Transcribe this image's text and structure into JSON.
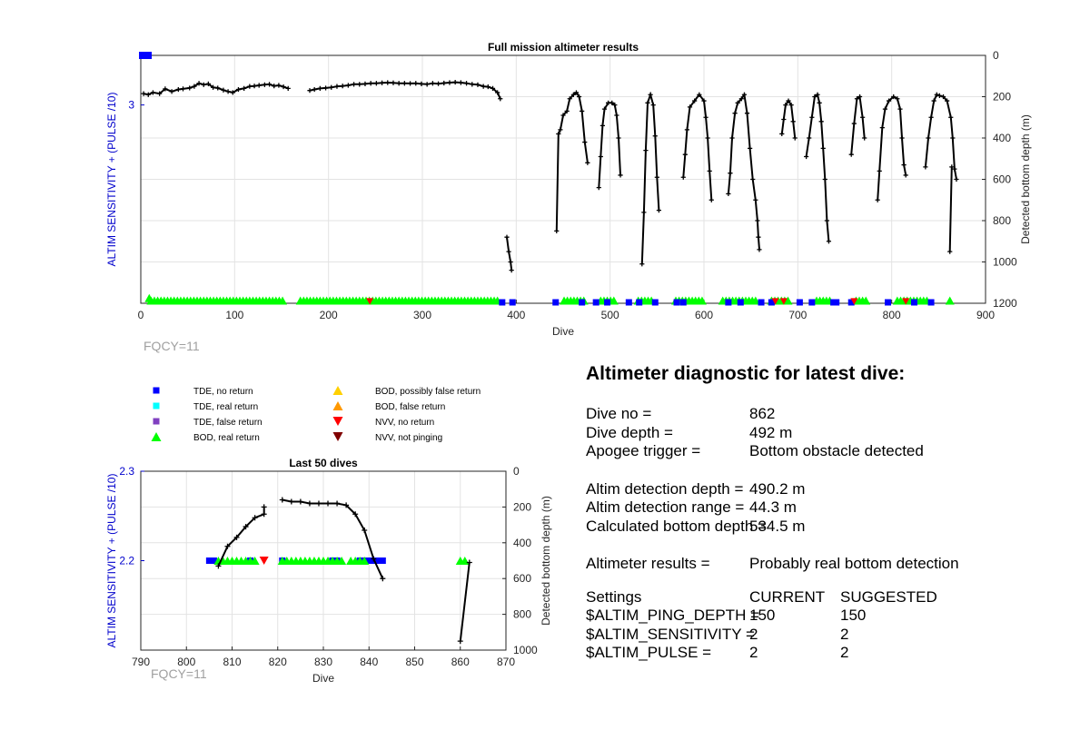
{
  "colors": {
    "tde_no_return": "#0000ff",
    "tde_real_return": "#00ffff",
    "tde_false_return": "#8040c0",
    "bod_real_return": "#00ff00",
    "bod_possibly_false": "#ffd000",
    "bod_false": "#ff9900",
    "nvv_no_return": "#ff0000",
    "nvv_not_pinging": "#800000",
    "depth_line": "#000000",
    "left_axis": "#0000cc",
    "fqcy_text": "#a0a0a0"
  },
  "top_fqcy": "FQCY=11",
  "bottom_fqcy": "FQCY=11",
  "legend": [
    {
      "label": "TDE, no return",
      "marker": "square",
      "color_key": "tde_no_return"
    },
    {
      "label": "TDE, real return",
      "marker": "square",
      "color_key": "tde_real_return"
    },
    {
      "label": "TDE, false return",
      "marker": "square",
      "color_key": "tde_false_return"
    },
    {
      "label": "BOD, real return",
      "marker": "triangle-up",
      "color_key": "bod_real_return"
    },
    {
      "label": "BOD, possibly false return",
      "marker": "triangle-up",
      "color_key": "bod_possibly_false"
    },
    {
      "label": "BOD, false return",
      "marker": "triangle-up",
      "color_key": "bod_false"
    },
    {
      "label": "NVV, no return",
      "marker": "triangle-down",
      "color_key": "nvv_no_return"
    },
    {
      "label": "NVV, not pinging",
      "marker": "triangle-down",
      "color_key": "nvv_not_pinging"
    }
  ],
  "chart_data": [
    {
      "type": "line",
      "title": "Full mission altimeter results",
      "xlabel": "Dive",
      "ylabel": "ALTIM SENSITIVITY + (PULSE /10)",
      "y2label": "Detected bottom depth (m)",
      "xlim": [
        0,
        900
      ],
      "xticks": [
        0,
        100,
        200,
        300,
        400,
        500,
        600,
        700,
        800,
        900
      ],
      "ylim_left": [
        2.2,
        3.2
      ],
      "yticks_left": [
        3
      ],
      "ylim_right": [
        1200,
        0
      ],
      "yticks_right": [
        0,
        200,
        400,
        600,
        800,
        1000,
        1200
      ],
      "grid": true,
      "tde_markers": [
        {
          "x": 1,
          "y": 3.2
        },
        {
          "x": 385,
          "y": 2.2
        },
        {
          "x": 396,
          "y": 2.2
        },
        {
          "x": 442,
          "y": 2.2
        },
        {
          "x": 470,
          "y": 2.2
        },
        {
          "x": 485,
          "y": 2.2
        },
        {
          "x": 497,
          "y": 2.2
        },
        {
          "x": 520,
          "y": 2.2
        },
        {
          "x": 531,
          "y": 2.2
        },
        {
          "x": 548,
          "y": 2.2
        },
        {
          "x": 571,
          "y": 2.2
        },
        {
          "x": 578,
          "y": 2.2
        },
        {
          "x": 626,
          "y": 2.2
        },
        {
          "x": 639,
          "y": 2.2
        },
        {
          "x": 661,
          "y": 2.2
        },
        {
          "x": 672,
          "y": 2.2
        },
        {
          "x": 702,
          "y": 2.2
        },
        {
          "x": 715,
          "y": 2.2
        },
        {
          "x": 738,
          "y": 2.2
        },
        {
          "x": 741,
          "y": 2.2
        },
        {
          "x": 757,
          "y": 2.2
        },
        {
          "x": 796,
          "y": 2.2
        },
        {
          "x": 824,
          "y": 2.2
        },
        {
          "x": 842,
          "y": 2.2
        }
      ],
      "bod_segments": [
        [
          11,
          153
        ],
        [
          170,
          383
        ],
        [
          451,
          475
        ],
        [
          490,
          505
        ],
        [
          530,
          545
        ],
        [
          570,
          600
        ],
        [
          620,
          655
        ],
        [
          672,
          690
        ],
        [
          720,
          735
        ],
        [
          762,
          775
        ],
        [
          806,
          840
        ]
      ],
      "bod_singles": [
        {
          "x": 9,
          "y": 2.21
        },
        {
          "x": 862,
          "y": 2.2
        }
      ],
      "nvv_markers": [
        {
          "x": 244,
          "y": 2.2
        },
        {
          "x": 676,
          "y": 2.2
        },
        {
          "x": 685,
          "y": 2.2
        },
        {
          "x": 760,
          "y": 2.2
        },
        {
          "x": 815,
          "y": 2.2
        }
      ],
      "depth_series": [
        [
          [
            3,
            185
          ],
          [
            8,
            190
          ],
          [
            13,
            180
          ],
          [
            20,
            185
          ],
          [
            26,
            162
          ],
          [
            33,
            175
          ],
          [
            40,
            165
          ],
          [
            45,
            162
          ],
          [
            52,
            158
          ],
          [
            57,
            150
          ],
          [
            62,
            135
          ],
          [
            67,
            142
          ],
          [
            72,
            138
          ],
          [
            77,
            155
          ],
          [
            82,
            158
          ],
          [
            88,
            168
          ],
          [
            93,
            175
          ],
          [
            98,
            180
          ],
          [
            104,
            165
          ],
          [
            110,
            160
          ],
          [
            116,
            150
          ],
          [
            121,
            148
          ],
          [
            126,
            145
          ],
          [
            132,
            142
          ],
          [
            137,
            140
          ],
          [
            142,
            148
          ],
          [
            147,
            145
          ],
          [
            152,
            152
          ],
          [
            157,
            160
          ]
        ],
        [
          [
            180,
            170
          ],
          [
            185,
            165
          ],
          [
            191,
            160
          ],
          [
            197,
            158
          ],
          [
            203,
            155
          ],
          [
            209,
            150
          ],
          [
            215,
            148
          ],
          [
            221,
            145
          ],
          [
            227,
            140
          ],
          [
            233,
            140
          ],
          [
            239,
            138
          ],
          [
            245,
            135
          ],
          [
            251,
            135
          ],
          [
            257,
            133
          ],
          [
            263,
            132
          ],
          [
            269,
            133
          ],
          [
            275,
            135
          ],
          [
            281,
            135
          ],
          [
            287,
            136
          ],
          [
            293,
            135
          ],
          [
            299,
            138
          ],
          [
            305,
            140
          ],
          [
            311,
            135
          ],
          [
            317,
            137
          ],
          [
            323,
            134
          ],
          [
            329,
            132
          ],
          [
            335,
            130
          ],
          [
            341,
            132
          ],
          [
            347,
            135
          ],
          [
            353,
            140
          ],
          [
            359,
            142
          ],
          [
            365,
            150
          ],
          [
            370,
            152
          ],
          [
            375,
            160
          ],
          [
            380,
            180
          ],
          [
            383,
            210
          ]
        ],
        [
          [
            390,
            880
          ],
          [
            392,
            950
          ],
          [
            394,
            1000
          ],
          [
            395,
            1040
          ]
        ],
        [
          [
            443,
            850
          ],
          [
            445,
            380
          ],
          [
            447,
            360
          ],
          [
            450,
            290
          ],
          [
            454,
            270
          ],
          [
            457,
            210
          ],
          [
            461,
            190
          ],
          [
            464,
            180
          ],
          [
            467,
            200
          ],
          [
            470,
            270
          ],
          [
            473,
            420
          ],
          [
            476,
            520
          ]
        ],
        [
          [
            488,
            640
          ],
          [
            490,
            490
          ],
          [
            492,
            340
          ],
          [
            494,
            260
          ],
          [
            498,
            230
          ],
          [
            502,
            230
          ],
          [
            505,
            240
          ],
          [
            507,
            290
          ],
          [
            509,
            400
          ],
          [
            511,
            580
          ]
        ],
        [
          [
            534,
            1010
          ],
          [
            536,
            760
          ],
          [
            538,
            460
          ],
          [
            540,
            230
          ],
          [
            543,
            190
          ],
          [
            546,
            240
          ],
          [
            548,
            390
          ],
          [
            550,
            590
          ],
          [
            552,
            750
          ]
        ],
        [
          [
            578,
            590
          ],
          [
            580,
            480
          ],
          [
            582,
            360
          ],
          [
            585,
            250
          ],
          [
            590,
            220
          ],
          [
            595,
            190
          ],
          [
            600,
            220
          ],
          [
            602,
            300
          ],
          [
            604,
            400
          ],
          [
            606,
            560
          ],
          [
            608,
            700
          ]
        ],
        [
          [
            626,
            670
          ],
          [
            628,
            570
          ],
          [
            630,
            400
          ],
          [
            633,
            280
          ],
          [
            636,
            230
          ],
          [
            640,
            210
          ],
          [
            643,
            190
          ],
          [
            646,
            280
          ],
          [
            649,
            450
          ],
          [
            652,
            600
          ],
          [
            655,
            700
          ],
          [
            657,
            800
          ],
          [
            658,
            880
          ],
          [
            659,
            940
          ]
        ],
        [
          [
            683,
            380
          ],
          [
            685,
            310
          ],
          [
            687,
            240
          ],
          [
            690,
            220
          ],
          [
            693,
            240
          ],
          [
            695,
            320
          ],
          [
            697,
            400
          ]
        ],
        [
          [
            709,
            490
          ],
          [
            712,
            400
          ],
          [
            715,
            300
          ],
          [
            718,
            200
          ],
          [
            721,
            190
          ],
          [
            723,
            230
          ],
          [
            725,
            320
          ],
          [
            727,
            450
          ],
          [
            729,
            600
          ],
          [
            731,
            800
          ],
          [
            733,
            900
          ]
        ],
        [
          [
            757,
            480
          ],
          [
            760,
            330
          ],
          [
            763,
            210
          ],
          [
            766,
            200
          ],
          [
            769,
            300
          ],
          [
            771,
            400
          ]
        ],
        [
          [
            785,
            700
          ],
          [
            787,
            560
          ],
          [
            790,
            350
          ],
          [
            793,
            260
          ],
          [
            797,
            220
          ],
          [
            802,
            200
          ],
          [
            806,
            210
          ],
          [
            809,
            260
          ],
          [
            811,
            400
          ],
          [
            813,
            530
          ],
          [
            815,
            580
          ]
        ],
        [
          [
            836,
            540
          ],
          [
            839,
            400
          ],
          [
            842,
            300
          ],
          [
            845,
            220
          ],
          [
            848,
            190
          ],
          [
            851,
            195
          ],
          [
            855,
            200
          ],
          [
            859,
            220
          ],
          [
            863,
            300
          ],
          [
            865,
            400
          ],
          [
            867,
            550
          ],
          [
            869,
            600
          ]
        ],
        [
          [
            862,
            950
          ],
          [
            864,
            540
          ]
        ]
      ]
    },
    {
      "type": "line",
      "title": "Last 50 dives",
      "xlabel": "Dive",
      "ylabel": "ALTIM SENSITIVITY + (PULSE /10)",
      "y2label": "Detected bottom depth (m)",
      "xlim": [
        790,
        870
      ],
      "xticks": [
        790,
        800,
        810,
        820,
        830,
        840,
        850,
        860,
        870
      ],
      "ylim_left": [
        2.1,
        2.3
      ],
      "yticks_left": [
        2.2,
        2.3
      ],
      "ylim_right": [
        1000,
        0
      ],
      "yticks_right": [
        0,
        200,
        400,
        600,
        800,
        1000
      ],
      "grid": true,
      "tde_markers": [
        805,
        806,
        814,
        821,
        832,
        833,
        838,
        839,
        840,
        841,
        842,
        843
      ],
      "bod_markers": [
        807,
        808,
        809,
        810,
        811,
        812,
        813,
        814,
        815,
        821,
        822,
        823,
        824,
        825,
        826,
        827,
        828,
        829,
        830,
        831,
        832,
        833,
        834,
        836,
        837,
        838,
        839,
        860,
        861
      ],
      "nvv_markers": [
        817
      ],
      "depth_series": [
        [
          [
            807,
            530
          ],
          [
            809,
            420
          ],
          [
            811,
            370
          ],
          [
            813,
            310
          ],
          [
            815,
            260
          ],
          [
            817,
            240
          ],
          [
            817,
            200
          ]
        ],
        [
          [
            821,
            160
          ],
          [
            823,
            170
          ],
          [
            825,
            170
          ],
          [
            827,
            180
          ],
          [
            829,
            180
          ],
          [
            831,
            180
          ],
          [
            833,
            180
          ],
          [
            835,
            190
          ],
          [
            837,
            240
          ],
          [
            839,
            330
          ],
          [
            841,
            490
          ],
          [
            843,
            600
          ]
        ],
        [
          [
            860,
            950
          ],
          [
            862,
            510
          ]
        ]
      ]
    }
  ],
  "diagnostic": {
    "title": "Altimeter diagnostic for latest dive:",
    "rows1": [
      {
        "k": "Dive no =",
        "v": "862"
      },
      {
        "k": "Dive depth =",
        "v": "492 m"
      },
      {
        "k": "Apogee trigger =",
        "v": "Bottom obstacle detected"
      }
    ],
    "rows2": [
      {
        "k": "Altim detection depth =",
        "v": "490.2 m"
      },
      {
        "k": "Altim detection range =",
        "v": "44.3 m"
      },
      {
        "k": "Calculated bottom depth =",
        "v": "534.5 m"
      }
    ],
    "rows3": [
      {
        "k": "Altimeter results =",
        "v": "Probably real bottom detection"
      }
    ],
    "settings_header": {
      "k": "Settings",
      "v": "CURRENT",
      "v2": "SUGGESTED"
    },
    "settings": [
      {
        "k": "$ALTIM_PING_DEPTH =",
        "v": "150",
        "v2": "150"
      },
      {
        "k": "$ALTIM_SENSITIVITY =",
        "v": "2",
        "v2": "2"
      },
      {
        "k": "$ALTIM_PULSE =",
        "v": "2",
        "v2": "2"
      }
    ]
  }
}
